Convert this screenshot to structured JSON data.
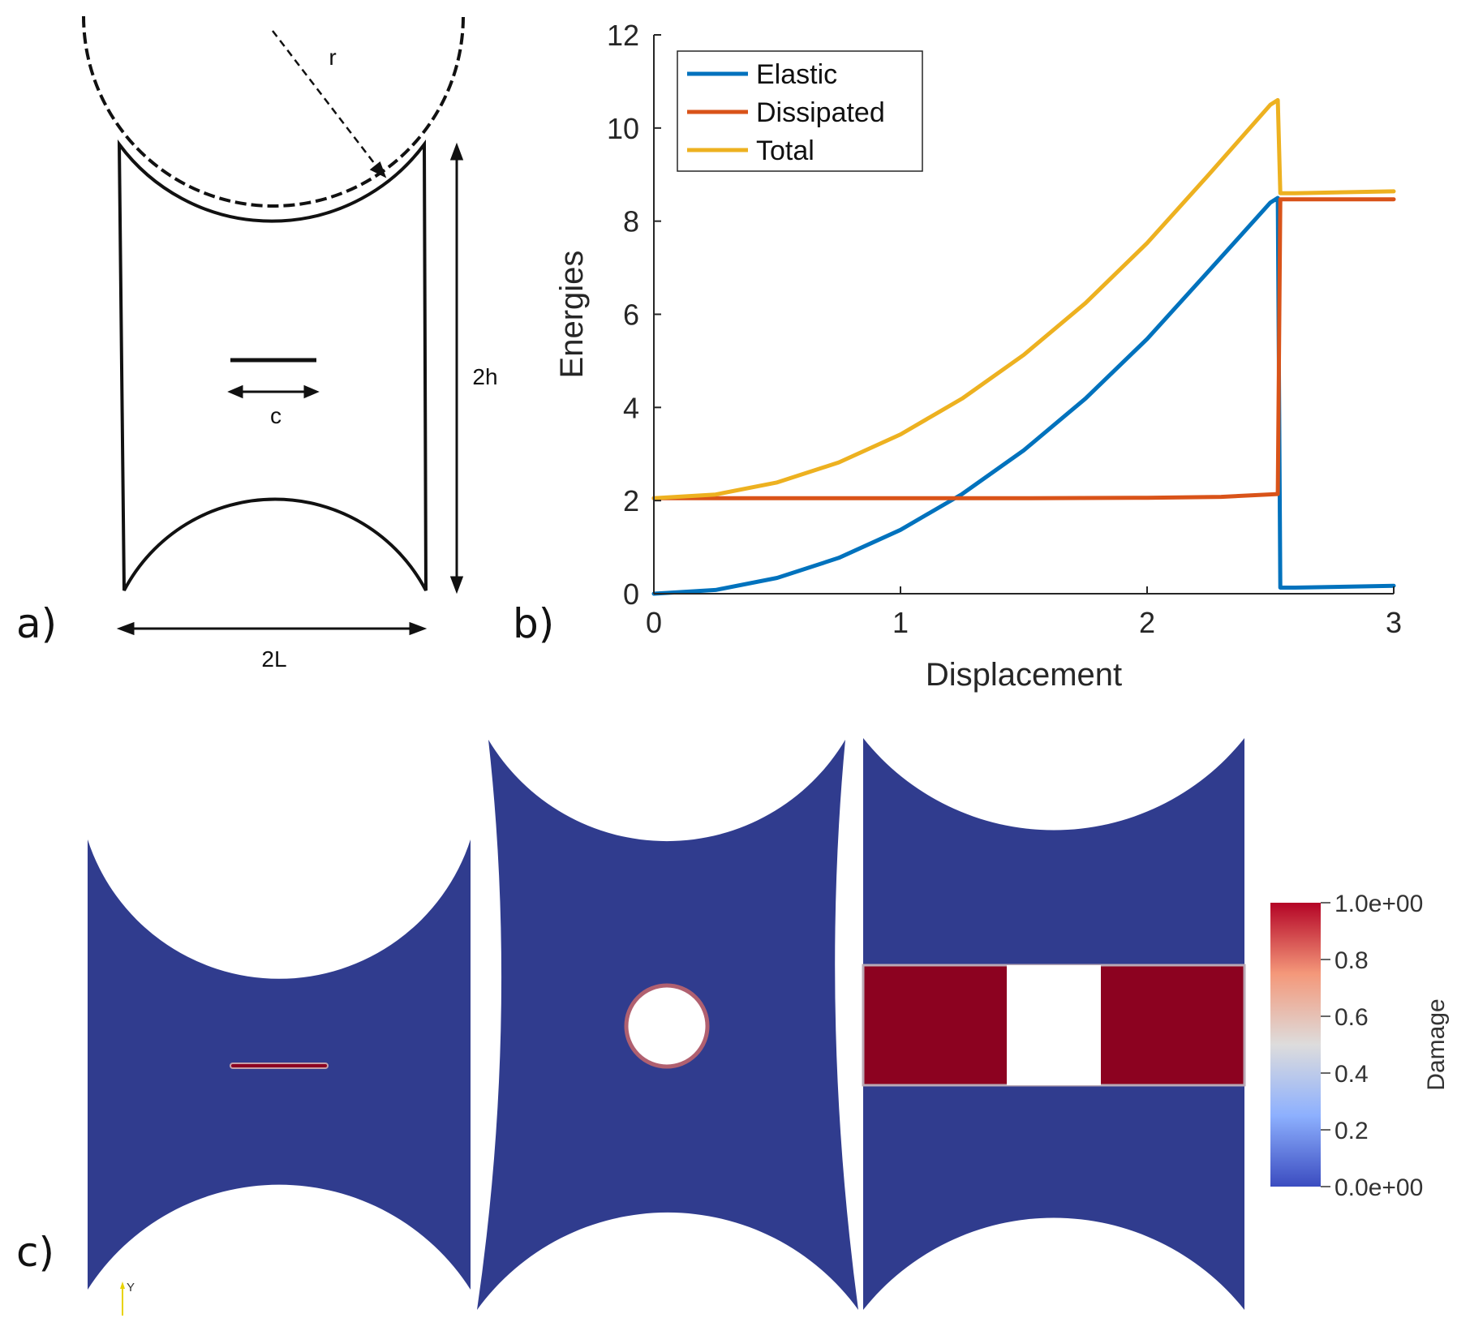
{
  "panel_a": {
    "label": "a)",
    "dims": {
      "r": "r",
      "h": "2h",
      "c": "c",
      "L": "2L"
    }
  },
  "panel_b": {
    "label": "b)"
  },
  "panel_c": {
    "label": "c)",
    "colorbar": {
      "title": "Damage",
      "ticks": [
        "1.0e+00",
        "0.8",
        "0.6",
        "0.4",
        "0.2",
        "0.0e+00"
      ],
      "colors": [
        "#b40426",
        "#f4987a",
        "#dddcdc",
        "#8db0fe",
        "#3b4cc0"
      ]
    },
    "axis_glyph": "Y",
    "colors": {
      "mesh": "#303c8e",
      "crack": "#8c0220",
      "crack_edge": "#c4a0a8"
    }
  },
  "chart_data": {
    "type": "line",
    "xlabel": "Displacement",
    "ylabel": "Energies",
    "xlim": [
      0,
      3
    ],
    "ylim": [
      0,
      12
    ],
    "xticks": [
      "0",
      "1",
      "2",
      "3"
    ],
    "yticks": [
      "0",
      "2",
      "4",
      "6",
      "8",
      "10",
      "12"
    ],
    "legend_position": "top-left",
    "series": [
      {
        "name": "Elastic",
        "color": "#0072bd",
        "x": [
          0,
          0.25,
          0.5,
          0.75,
          1.0,
          1.25,
          1.5,
          1.75,
          2.0,
          2.25,
          2.5,
          2.53,
          2.54,
          2.6,
          3.0
        ],
        "y": [
          0,
          0.08,
          0.34,
          0.77,
          1.37,
          2.14,
          3.08,
          4.19,
          5.47,
          6.93,
          8.4,
          8.5,
          0.13,
          0.13,
          0.17
        ]
      },
      {
        "name": "Dissipated",
        "color": "#d95319",
        "x": [
          0,
          0.5,
          1.0,
          1.5,
          2.0,
          2.3,
          2.53,
          2.54,
          2.6,
          3.0
        ],
        "y": [
          2.05,
          2.05,
          2.05,
          2.05,
          2.06,
          2.08,
          2.14,
          8.47,
          8.47,
          8.47
        ]
      },
      {
        "name": "Total",
        "color": "#edb120",
        "x": [
          0,
          0.25,
          0.5,
          0.75,
          1.0,
          1.25,
          1.5,
          1.75,
          2.0,
          2.25,
          2.5,
          2.53,
          2.54,
          2.6,
          3.0
        ],
        "y": [
          2.05,
          2.13,
          2.39,
          2.82,
          3.42,
          4.19,
          5.13,
          6.24,
          7.53,
          9.0,
          10.5,
          10.6,
          8.6,
          8.6,
          8.64
        ]
      }
    ]
  }
}
